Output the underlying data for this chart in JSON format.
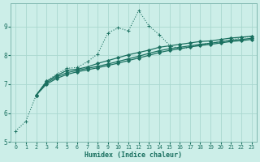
{
  "xlabel": "Humidex (Indice chaleur)",
  "ylabel": "",
  "bg_color": "#cceee8",
  "grid_color": "#aad8d0",
  "line_color": "#1a7060",
  "xlim": [
    -0.5,
    23.5
  ],
  "ylim": [
    5.0,
    9.8
  ],
  "yticks": [
    5,
    6,
    7,
    8,
    9
  ],
  "xticks": [
    0,
    1,
    2,
    3,
    4,
    5,
    6,
    7,
    8,
    9,
    10,
    11,
    12,
    13,
    14,
    15,
    16,
    17,
    18,
    19,
    20,
    21,
    22,
    23
  ],
  "series": [
    {
      "x": [
        0,
        1,
        2,
        3,
        4,
        5,
        6,
        7,
        8,
        9,
        10,
        11,
        12,
        13,
        14,
        15,
        16,
        17,
        18,
        19,
        20,
        21,
        22,
        23
      ],
      "y": [
        5.38,
        5.72,
        6.62,
        7.1,
        7.35,
        7.55,
        7.58,
        7.78,
        8.05,
        8.78,
        8.95,
        8.85,
        9.55,
        9.02,
        8.72,
        8.35,
        8.22,
        8.28,
        8.38,
        8.42,
        8.48,
        8.52,
        8.62,
        8.65
      ],
      "marker": "+",
      "markersize": 3.5,
      "linewidth": 0.8,
      "linestyle": "dotted"
    },
    {
      "x": [
        2,
        3,
        4,
        5,
        6,
        7,
        8,
        9,
        10,
        11,
        12,
        13,
        14,
        15,
        16,
        17,
        18,
        19,
        20,
        21,
        22,
        23
      ],
      "y": [
        6.62,
        7.1,
        7.3,
        7.48,
        7.52,
        7.6,
        7.72,
        7.82,
        7.92,
        8.02,
        8.1,
        8.18,
        8.28,
        8.33,
        8.38,
        8.43,
        8.48,
        8.5,
        8.55,
        8.6,
        8.63,
        8.66
      ],
      "marker": "D",
      "markersize": 2.0,
      "linewidth": 0.9,
      "linestyle": "solid"
    },
    {
      "x": [
        2,
        3,
        4,
        5,
        6,
        7,
        8,
        9,
        10,
        11,
        12,
        13,
        14,
        15,
        16,
        17,
        18,
        19,
        20,
        21,
        22,
        23
      ],
      "y": [
        6.62,
        7.05,
        7.25,
        7.4,
        7.48,
        7.55,
        7.62,
        7.7,
        7.79,
        7.88,
        7.97,
        8.07,
        8.16,
        8.23,
        8.28,
        8.33,
        8.38,
        8.42,
        8.47,
        8.52,
        8.55,
        8.59
      ],
      "marker": "D",
      "markersize": 2.0,
      "linewidth": 0.9,
      "linestyle": "solid"
    },
    {
      "x": [
        2,
        3,
        4,
        5,
        6,
        7,
        8,
        9,
        10,
        11,
        12,
        13,
        14,
        15,
        16,
        17,
        18,
        19,
        20,
        21,
        22,
        23
      ],
      "y": [
        6.62,
        7.0,
        7.2,
        7.34,
        7.43,
        7.5,
        7.57,
        7.65,
        7.73,
        7.82,
        7.91,
        8.0,
        8.1,
        8.17,
        8.23,
        8.29,
        8.34,
        8.38,
        8.43,
        8.48,
        8.51,
        8.55
      ],
      "marker": "D",
      "markersize": 2.0,
      "linewidth": 0.9,
      "linestyle": "solid"
    }
  ]
}
